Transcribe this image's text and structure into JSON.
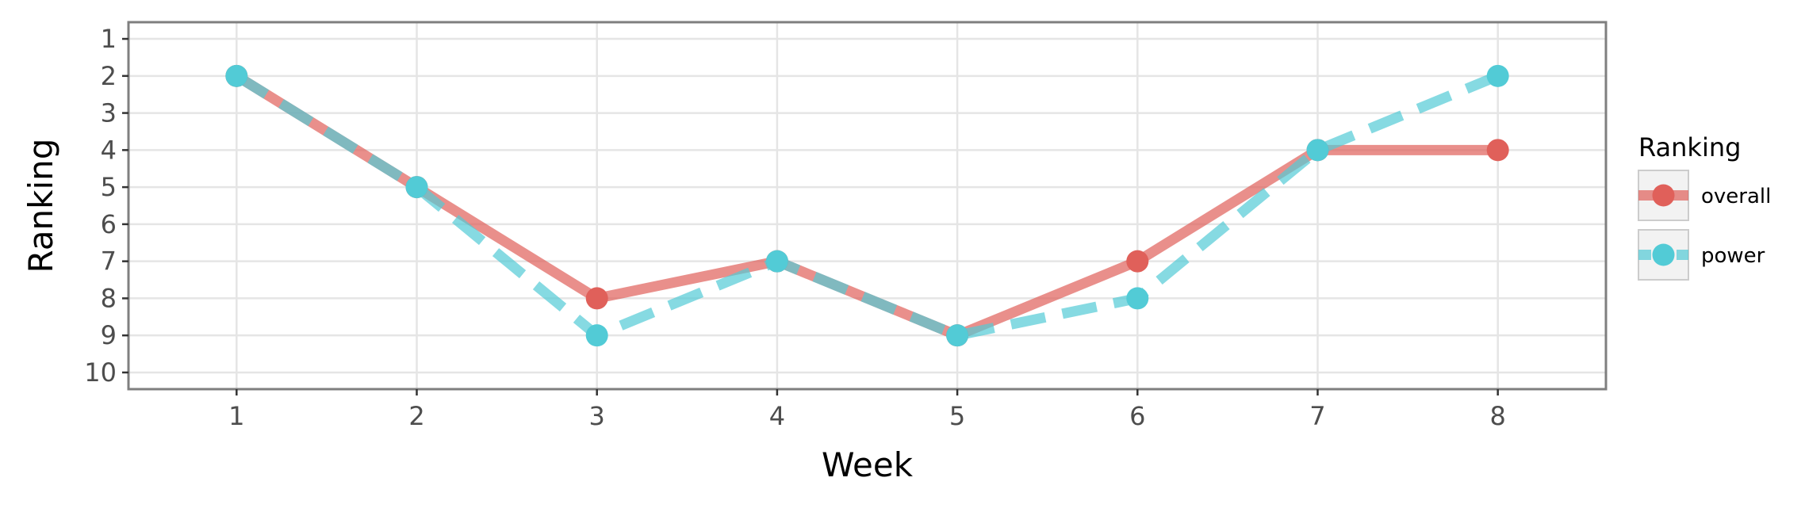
{
  "chart_data": {
    "type": "line",
    "xlabel": "Week",
    "ylabel": "Ranking",
    "x": [
      1,
      2,
      3,
      4,
      5,
      6,
      7,
      8
    ],
    "xlim": [
      0.4,
      8.6
    ],
    "ylim": [
      10.45,
      0.55
    ],
    "y_reversed": true,
    "x_ticks": [
      1,
      2,
      3,
      4,
      5,
      6,
      7,
      8
    ],
    "y_ticks": [
      1,
      2,
      3,
      4,
      5,
      6,
      7,
      8,
      9,
      10
    ],
    "grid": true,
    "legend": {
      "title": "Ranking",
      "position": "right"
    },
    "series": [
      {
        "name": "overall",
        "values": [
          2,
          5,
          8,
          7,
          9,
          7,
          4,
          4
        ],
        "color": "#e0605a",
        "line_style": "solid"
      },
      {
        "name": "power",
        "values": [
          2,
          5,
          9,
          7,
          9,
          8,
          4,
          2
        ],
        "color": "#52cbd6",
        "line_style": "dashed"
      }
    ]
  }
}
